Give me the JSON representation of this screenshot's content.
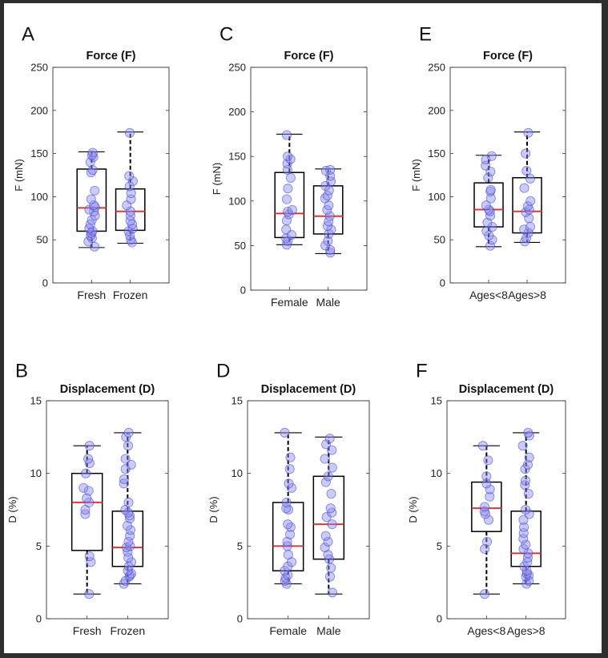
{
  "colors": {
    "background": "#2e2e2e",
    "panel": "#ffffff",
    "median_line": "#d63a3a",
    "point_fill": "#8c8cf0",
    "point_stroke": "#3c3cc8",
    "axis": "#333333"
  },
  "chart_data": [
    {
      "id": "A",
      "panel_letter": "A",
      "type": "box",
      "title": "Force (F)",
      "ylabel": "F (mN)",
      "xlabel": "",
      "ylim": [
        0,
        250
      ],
      "yticks": [
        "0",
        "50",
        "100",
        "150",
        "200",
        "250"
      ],
      "categories": [
        "Fresh",
        "Frozen"
      ],
      "series": [
        {
          "name": "Fresh",
          "min": 41,
          "q1": 60,
          "median": 87,
          "q3": 132,
          "max": 152,
          "points": [
            42,
            48,
            52,
            55,
            58,
            60,
            63,
            68,
            73,
            78,
            83,
            85,
            88,
            90,
            97,
            107,
            128,
            131,
            140,
            146,
            148,
            151
          ]
        },
        {
          "name": "Frozen",
          "min": 46,
          "q1": 61,
          "median": 83,
          "q3": 109,
          "max": 175,
          "points": [
            47,
            50,
            55,
            60,
            63,
            68,
            72,
            78,
            83,
            90,
            97,
            104,
            112,
            118,
            124,
            174
          ]
        }
      ]
    },
    {
      "id": "B",
      "panel_letter": "B",
      "type": "box",
      "title": "Displacement (D)",
      "ylabel": "D (%)",
      "xlabel": "",
      "ylim": [
        0,
        15
      ],
      "yticks": [
        "0",
        "5",
        "10",
        "15"
      ],
      "categories": [
        "Fresh",
        "Frozen"
      ],
      "series": [
        {
          "name": "Fresh",
          "min": 1.7,
          "q1": 4.7,
          "median": 8.0,
          "q3": 10.0,
          "max": 11.9,
          "points": [
            1.7,
            3.9,
            4.3,
            7.2,
            7.5,
            8.0,
            8.3,
            8.8,
            9.0,
            10.0,
            10.7,
            11.0,
            11.9
          ]
        },
        {
          "name": "Frozen",
          "min": 2.4,
          "q1": 3.6,
          "median": 4.9,
          "q3": 7.4,
          "max": 12.8,
          "points": [
            2.4,
            2.6,
            2.9,
            3.0,
            3.1,
            3.3,
            3.6,
            3.9,
            4.2,
            4.6,
            4.9,
            5.0,
            5.3,
            5.7,
            6.1,
            6.4,
            6.9,
            7.1,
            7.3,
            7.5,
            8.0,
            9.3,
            9.6,
            10.3,
            10.6,
            11.0,
            11.9,
            12.5,
            12.8
          ]
        }
      ]
    },
    {
      "id": "C",
      "panel_letter": "C",
      "type": "box",
      "title": "Force (F)",
      "ylabel": "F (mN)",
      "xlabel": "",
      "ylim": [
        0,
        250
      ],
      "yticks": [
        "0",
        "50",
        "100",
        "150",
        "200",
        "250"
      ],
      "categories": [
        "Female",
        "Male"
      ],
      "series": [
        {
          "name": "Female",
          "min": 51,
          "q1": 59,
          "median": 86,
          "q3": 132,
          "max": 175,
          "points": [
            51,
            55,
            58,
            62,
            68,
            78,
            85,
            88,
            90,
            102,
            114,
            126,
            135,
            142,
            147,
            150,
            174
          ]
        },
        {
          "name": "Male",
          "min": 41,
          "q1": 63,
          "median": 83,
          "q3": 117,
          "max": 136,
          "points": [
            42,
            45,
            50,
            55,
            63,
            68,
            72,
            77,
            83,
            90,
            95,
            103,
            106,
            112,
            117,
            122,
            128,
            134,
            135
          ]
        }
      ]
    },
    {
      "id": "D",
      "panel_letter": "D",
      "type": "box",
      "title": "Displacement (D)",
      "ylabel": "D (%)",
      "xlabel": "",
      "ylim": [
        0,
        15
      ],
      "yticks": [
        "0",
        "5",
        "10",
        "15"
      ],
      "categories": [
        "Female",
        "Male"
      ],
      "series": [
        {
          "name": "Female",
          "min": 2.4,
          "q1": 3.3,
          "median": 5.0,
          "q3": 8.0,
          "max": 12.8,
          "points": [
            2.4,
            2.6,
            2.8,
            3.0,
            3.3,
            3.6,
            3.9,
            4.4,
            5.0,
            5.3,
            5.8,
            6.3,
            6.5,
            7.5,
            7.6,
            8.0,
            9.0,
            9.3,
            10.3,
            11.1,
            12.8
          ]
        },
        {
          "name": "Male",
          "min": 1.7,
          "q1": 4.1,
          "median": 6.5,
          "q3": 9.8,
          "max": 12.5,
          "points": [
            1.8,
            2.9,
            3.5,
            4.1,
            4.4,
            4.9,
            5.3,
            5.7,
            6.5,
            7.0,
            7.3,
            7.6,
            8.6,
            9.4,
            9.8,
            10.4,
            11.0,
            11.6,
            12.0,
            12.4
          ]
        }
      ]
    },
    {
      "id": "E",
      "panel_letter": "E",
      "type": "box",
      "title": "Force (F)",
      "ylabel": "F (mN)",
      "xlabel": "",
      "ylim": [
        0,
        250
      ],
      "yticks": [
        "0",
        "50",
        "100",
        "150",
        "200",
        "250"
      ],
      "categories": [
        "Ages<8",
        "Ages>8"
      ],
      "series": [
        {
          "name": "Ages<8",
          "min": 42,
          "q1": 65,
          "median": 85,
          "q3": 116,
          "max": 148,
          "points": [
            43,
            50,
            55,
            60,
            65,
            70,
            78,
            83,
            85,
            90,
            98,
            106,
            108,
            122,
            129,
            136,
            143,
            147
          ]
        },
        {
          "name": "Ages>8",
          "min": 47,
          "q1": 58,
          "median": 83,
          "q3": 122,
          "max": 175,
          "points": [
            48,
            52,
            58,
            62,
            65,
            75,
            82,
            85,
            89,
            95,
            110,
            121,
            130,
            150,
            174
          ]
        }
      ]
    },
    {
      "id": "F",
      "panel_letter": "F",
      "type": "box",
      "title": "Displacement (D)",
      "ylabel": "D (%)",
      "xlabel": "",
      "ylim": [
        0,
        15
      ],
      "yticks": [
        "0",
        "5",
        "10",
        "15"
      ],
      "categories": [
        "Ages<8",
        "Ages>8"
      ],
      "series": [
        {
          "name": "Ages<8",
          "min": 1.7,
          "q1": 6.0,
          "median": 7.6,
          "q3": 9.4,
          "max": 11.9,
          "points": [
            1.7,
            4.8,
            5.3,
            6.8,
            7.2,
            7.4,
            7.7,
            8.4,
            8.9,
            9.3,
            9.8,
            10.9,
            11.9
          ]
        },
        {
          "name": "Ages>8",
          "min": 2.4,
          "q1": 3.6,
          "median": 4.5,
          "q3": 7.4,
          "max": 12.8,
          "points": [
            2.4,
            2.6,
            2.9,
            3.0,
            3.1,
            3.3,
            3.6,
            3.9,
            4.2,
            4.5,
            4.8,
            5.1,
            5.5,
            5.9,
            6.3,
            6.8,
            7.2,
            7.5,
            8.6,
            9.2,
            9.5,
            10.3,
            10.6,
            11.1,
            11.9,
            12.6,
            12.8
          ]
        }
      ]
    }
  ]
}
